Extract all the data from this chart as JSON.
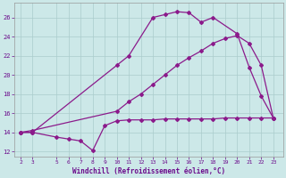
{
  "line1_x": [
    2,
    3,
    10,
    11,
    13,
    14,
    15,
    16,
    17,
    18,
    20,
    21,
    22,
    23
  ],
  "line1_y": [
    14,
    14,
    21,
    22,
    26,
    26.3,
    26.6,
    26.5,
    25.5,
    26,
    24.3,
    20.8,
    17.8,
    15.5
  ],
  "line2_x": [
    2,
    3,
    10,
    11,
    12,
    13,
    14,
    15,
    16,
    17,
    18,
    19,
    20,
    21,
    22,
    23
  ],
  "line2_y": [
    14,
    14.2,
    16.2,
    17.2,
    18.0,
    19.0,
    20.0,
    21.0,
    21.8,
    22.5,
    23.3,
    23.8,
    24.1,
    23.3,
    21.0,
    15.5
  ],
  "line3_x": [
    2,
    3,
    5,
    6,
    7,
    8,
    9,
    10,
    11,
    12,
    13,
    14,
    15,
    16,
    17,
    18,
    19,
    20,
    21,
    22,
    23
  ],
  "line3_y": [
    14,
    14,
    13.5,
    13.3,
    13.1,
    12.1,
    14.7,
    15.2,
    15.3,
    15.3,
    15.3,
    15.4,
    15.4,
    15.4,
    15.4,
    15.4,
    15.5,
    15.5,
    15.5,
    15.5,
    15.5
  ],
  "line_color": "#8B1A8B",
  "bg_color": "#CCE8E8",
  "grid_color": "#AACCCC",
  "xlabel": "Windchill (Refroidissement éolien,°C)",
  "xlabel_color": "#6B0A8B",
  "tick_color": "#6B0A8B",
  "xlim": [
    1.5,
    23.8
  ],
  "ylim": [
    11.5,
    27.5
  ],
  "yticks": [
    12,
    14,
    16,
    18,
    20,
    22,
    24,
    26
  ],
  "xticks": [
    2,
    3,
    5,
    6,
    7,
    8,
    9,
    10,
    11,
    12,
    13,
    14,
    15,
    16,
    17,
    18,
    19,
    20,
    21,
    22,
    23
  ],
  "marker": "D",
  "markersize": 2.0,
  "linewidth": 0.9
}
